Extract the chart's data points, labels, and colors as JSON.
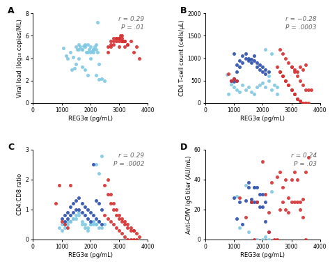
{
  "panel_A": {
    "label": "A",
    "xlabel": "REG3α (pg/mL)",
    "ylabel": "Viral load (log₁₀ copies/ML)",
    "r_text": "r = 0.29",
    "p_text": "P = .01",
    "xlim": [
      0,
      4000
    ],
    "ylim": [
      0,
      8
    ],
    "xticks": [
      0,
      1000,
      2000,
      3000,
      4000
    ],
    "yticks": [
      0,
      2,
      4,
      6,
      8
    ],
    "light_blue_x": [
      1050,
      1150,
      1200,
      1300,
      1350,
      1450,
      1500,
      1550,
      1600,
      1650,
      1700,
      1750,
      1800,
      1850,
      1900,
      1950,
      2000,
      2050,
      2100,
      2150,
      2200,
      2250,
      1400,
      1500,
      1600,
      1700,
      1800,
      1900,
      2000,
      2100,
      2200,
      2300,
      1600,
      1700,
      1800,
      1900,
      2000,
      2100,
      2200,
      2250,
      2300,
      2400,
      2500
    ],
    "light_blue_y": [
      4.9,
      4.2,
      4.0,
      4.5,
      3.0,
      3.1,
      5.0,
      4.8,
      5.2,
      5.0,
      4.8,
      5.1,
      5.2,
      4.5,
      4.5,
      4.8,
      4.5,
      4.6,
      4.8,
      5.0,
      4.8,
      7.2,
      4.1,
      3.5,
      4.8,
      3.2,
      3.0,
      2.5,
      4.0,
      4.5,
      2.5,
      2.1,
      4.0,
      4.8,
      5.0,
      5.2,
      5.0,
      4.8,
      5.2,
      4.5,
      3.5,
      2.2,
      2.0
    ],
    "red_x": [
      2600,
      2700,
      2800,
      2900,
      3000,
      3050,
      3100,
      3150,
      2600,
      2700,
      2800,
      2900,
      3000,
      3100,
      3200,
      2700,
      2800,
      2900,
      3000,
      3100,
      3200,
      3300,
      3000,
      3100,
      3200,
      3300,
      3400,
      3500,
      3600,
      3700
    ],
    "red_y": [
      5.0,
      5.2,
      5.5,
      5.8,
      5.5,
      6.0,
      5.8,
      5.5,
      4.5,
      5.0,
      5.2,
      5.5,
      5.8,
      6.0,
      5.5,
      5.5,
      5.8,
      5.8,
      5.8,
      5.5,
      5.0,
      5.2,
      5.0,
      5.5,
      5.5,
      5.2,
      5.5,
      4.5,
      5.0,
      4.0
    ]
  },
  "panel_B": {
    "label": "B",
    "xlabel": "REG3α (pg/mL)",
    "ylabel": "CD4 T-cell count (cells/μL)",
    "r_text": "r = −0.28",
    "p_text": "P = .0003",
    "xlim": [
      0,
      4000
    ],
    "ylim": [
      0,
      2000
    ],
    "xticks": [
      0,
      1000,
      2000,
      3000,
      4000
    ],
    "yticks": [
      0,
      500,
      1000,
      1500,
      2000
    ],
    "light_blue_x": [
      750,
      800,
      900,
      1000,
      1100,
      1200,
      1300,
      1400,
      1500,
      1600,
      1700,
      1800,
      1900,
      2000,
      2100,
      2200,
      2300,
      2400,
      2500,
      2100,
      2200,
      2300,
      2500
    ],
    "light_blue_y": [
      640,
      200,
      420,
      350,
      300,
      250,
      400,
      300,
      350,
      250,
      200,
      350,
      400,
      450,
      350,
      500,
      300,
      400,
      200,
      1200,
      600,
      1100,
      350
    ],
    "dark_blue_x": [
      900,
      1000,
      1100,
      1200,
      1300,
      1400,
      1500,
      1600,
      1700,
      1800,
      1900,
      2000,
      2100,
      2200,
      1000,
      1100,
      1200,
      1300,
      1400,
      1500,
      1600,
      1700,
      1800,
      1900,
      2000,
      2100,
      1000,
      1100
    ],
    "dark_blue_y": [
      500,
      480,
      850,
      950,
      1050,
      1100,
      1000,
      980,
      950,
      900,
      850,
      800,
      750,
      700,
      550,
      700,
      800,
      900,
      1000,
      950,
      900,
      1050,
      800,
      750,
      700,
      650,
      1100,
      500
    ],
    "red_x": [
      800,
      900,
      1000,
      1100,
      2500,
      2600,
      2700,
      2800,
      2900,
      3000,
      3100,
      3200,
      3300,
      3400,
      3500,
      3600,
      2600,
      2700,
      2800,
      2900,
      3000,
      3100,
      3200,
      3300,
      3400,
      3500,
      2600,
      2700,
      2800,
      2900,
      3000,
      3100,
      3200,
      3300,
      3400,
      3500,
      3600,
      3700,
      3000,
      3100,
      3200,
      3300,
      3400,
      3500
    ],
    "red_y": [
      650,
      500,
      550,
      500,
      800,
      700,
      600,
      500,
      400,
      300,
      200,
      100,
      50,
      0,
      0,
      0,
      1200,
      1100,
      1000,
      900,
      800,
      700,
      600,
      500,
      400,
      300,
      700,
      600,
      500,
      400,
      300,
      200,
      100,
      50,
      0,
      0,
      300,
      300,
      800,
      750,
      700,
      800,
      750,
      850
    ]
  },
  "panel_C": {
    "label": "C",
    "xlabel": "REG3α (pg/mL)",
    "ylabel": "CD4:CD8 ratio",
    "r_text": "r = 0.29",
    "p_text": "P = .0002",
    "xlim": [
      0,
      4000
    ],
    "ylim": [
      0,
      3
    ],
    "xticks": [
      0,
      1000,
      2000,
      3000,
      4000
    ],
    "yticks": [
      0,
      1,
      2,
      3
    ],
    "light_blue_x": [
      900,
      1000,
      1100,
      1200,
      1300,
      1400,
      1500,
      1600,
      1700,
      1800,
      1900,
      2000,
      2100,
      2200,
      2300,
      2400,
      1000,
      1100,
      1200,
      1300,
      1400,
      1500,
      1600,
      1700,
      1800,
      1900,
      2000,
      2100,
      2200,
      2300,
      2100,
      2200,
      2300,
      2400,
      2500
    ],
    "light_blue_y": [
      0.4,
      0.5,
      0.5,
      0.6,
      0.6,
      0.7,
      0.7,
      0.8,
      0.6,
      0.5,
      0.4,
      0.5,
      0.6,
      0.5,
      2.2,
      2.8,
      0.3,
      0.4,
      0.5,
      0.6,
      0.7,
      0.8,
      0.9,
      0.5,
      0.4,
      0.3,
      0.5,
      0.6,
      2.5,
      0.4,
      0.5,
      0.5,
      0.6,
      0.4,
      0.5
    ],
    "dark_blue_x": [
      1000,
      1100,
      1200,
      1300,
      1400,
      1500,
      1600,
      1700,
      1800,
      1900,
      2000,
      2100,
      2200,
      2300,
      2400,
      1100,
      1200,
      1300,
      1400,
      1500,
      1600,
      1700,
      1800,
      1900,
      2000,
      2100,
      2200,
      2300,
      2400
    ],
    "dark_blue_y": [
      0.7,
      0.8,
      0.9,
      1.1,
      1.2,
      1.3,
      1.4,
      1.2,
      1.1,
      1.0,
      0.9,
      0.8,
      0.7,
      0.6,
      0.5,
      0.6,
      0.7,
      0.8,
      0.9,
      1.0,
      1.0,
      0.9,
      0.8,
      0.7,
      0.6,
      2.5,
      1.3,
      1.2,
      1.0
    ],
    "red_x": [
      800,
      900,
      1000,
      1100,
      1200,
      1300,
      2500,
      2600,
      2700,
      2800,
      2900,
      3000,
      3100,
      3200,
      3300,
      3400,
      3500,
      2600,
      2700,
      2800,
      2900,
      3000,
      3100,
      3200,
      3300,
      3400,
      3500,
      3600,
      3700,
      2500,
      2600,
      2700,
      2800,
      2900,
      3000,
      3100,
      3200,
      3300,
      3400,
      3500,
      3600
    ],
    "red_y": [
      1.2,
      1.8,
      0.6,
      0.5,
      0.4,
      1.8,
      0.8,
      0.7,
      0.6,
      0.5,
      0.4,
      0.3,
      0.2,
      0.1,
      0.0,
      0.0,
      0.3,
      2.0,
      1.5,
      1.2,
      1.0,
      0.8,
      0.7,
      0.6,
      0.5,
      0.4,
      0.3,
      0.2,
      0.1,
      1.8,
      1.5,
      1.2,
      1.0,
      0.8,
      0.7,
      0.6,
      0.5,
      0.4,
      0.3,
      0.0,
      0.0
    ]
  },
  "panel_D": {
    "label": "D",
    "xlabel": "REG3α (pg/mL)",
    "ylabel": "Anti-CMV IgG titer (AU/mL)",
    "r_text": "r = 0.24",
    "p_text": "P = .03",
    "xlim": [
      0,
      4000
    ],
    "ylim": [
      0,
      60
    ],
    "xticks": [
      0,
      1000,
      2000,
      3000,
      4000
    ],
    "yticks": [
      0,
      20,
      40,
      60
    ],
    "light_blue_x": [
      1100,
      1200,
      1400,
      1500,
      1700,
      1800,
      2000,
      2100,
      2200,
      2300
    ],
    "light_blue_y": [
      29,
      8,
      36,
      5,
      35,
      0,
      0,
      2,
      0,
      32
    ],
    "dark_blue_x": [
      1000,
      1100,
      1200,
      1300,
      1400,
      1500,
      1500,
      1600,
      1600,
      1700,
      1700,
      1800,
      1800,
      1900,
      1900,
      2000,
      2000,
      2100,
      2100,
      2200
    ],
    "dark_blue_y": [
      28,
      14,
      25,
      10,
      26,
      35,
      38,
      25,
      27,
      35,
      25,
      25,
      35,
      30,
      22,
      22,
      30,
      25,
      12,
      5
    ],
    "red_x": [
      1200,
      1400,
      1600,
      1700,
      1800,
      2000,
      2100,
      2200,
      2200,
      2300,
      2400,
      2500,
      2500,
      2600,
      2600,
      2700,
      2700,
      2800,
      2800,
      2900,
      2900,
      3000,
      3000,
      3100,
      3100,
      3200,
      3200,
      3300,
      3300,
      3400,
      3400,
      3500,
      3500,
      3600
    ],
    "red_y": [
      28,
      15,
      25,
      0,
      25,
      52,
      30,
      18,
      5,
      38,
      0,
      0,
      42,
      45,
      20,
      25,
      35,
      40,
      20,
      28,
      18,
      25,
      40,
      25,
      45,
      40,
      25,
      25,
      20,
      27,
      15,
      0,
      45,
      55
    ]
  },
  "colors": {
    "light_blue": "#7ec8e3",
    "dark_blue": "#2b4fad",
    "red": "#d63030",
    "annotation_color": "#666666"
  }
}
